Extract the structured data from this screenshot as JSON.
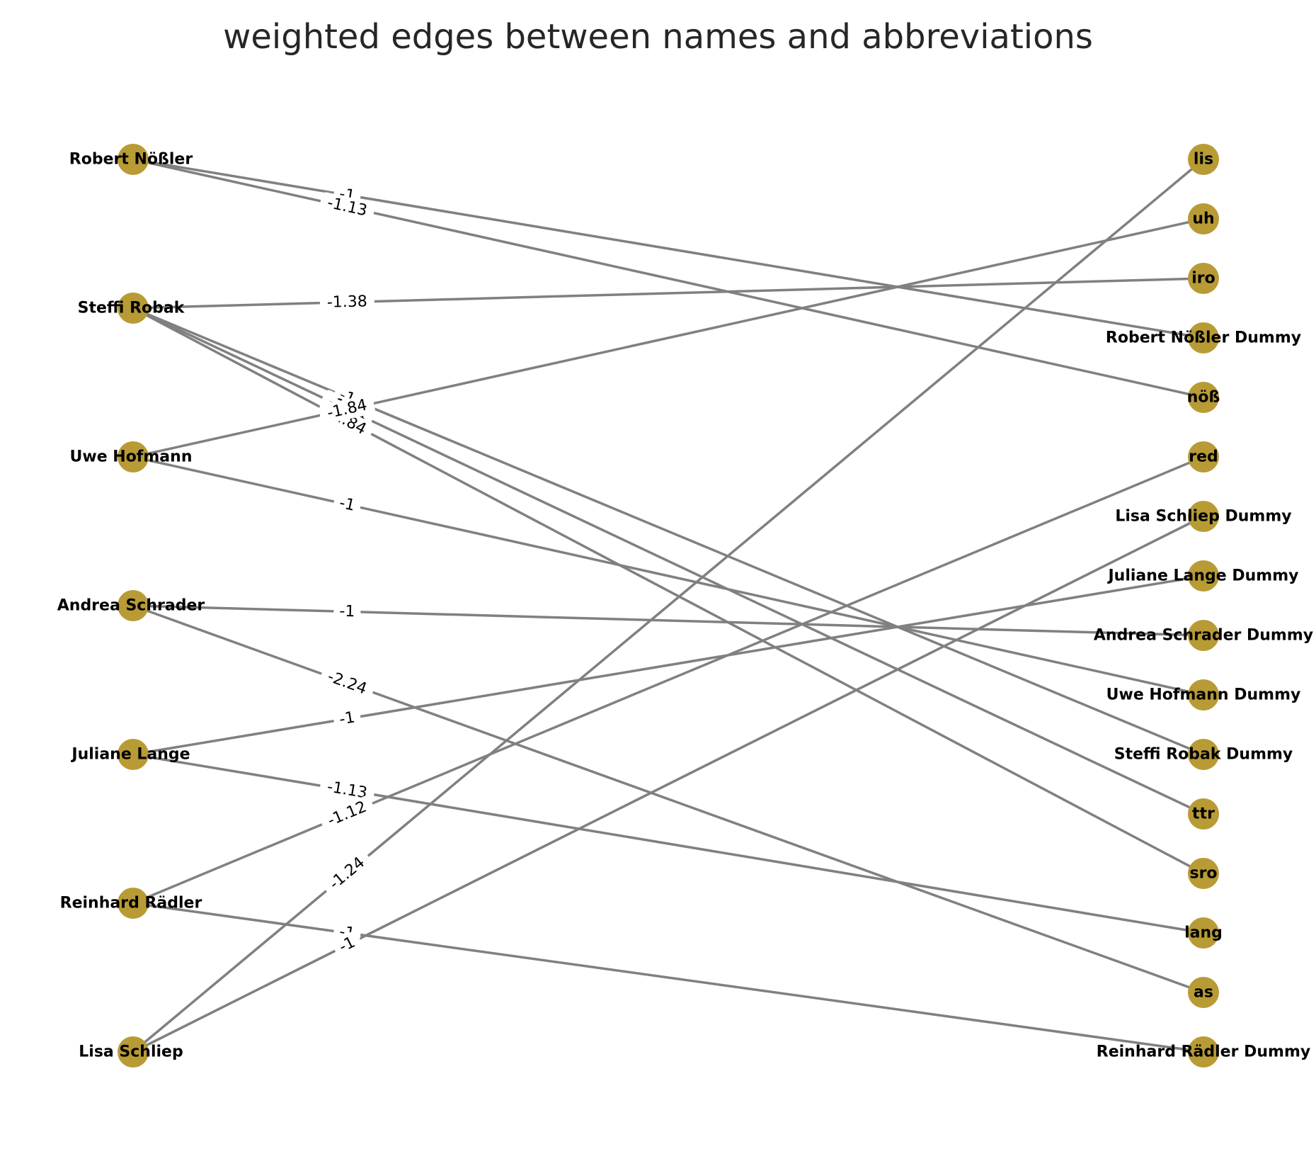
{
  "title": "weighted edges between names and abbreviations",
  "colors": {
    "node": "#b89b35",
    "edge": "#808080",
    "text": "#000000",
    "title": "#262626",
    "label_bg": "#ffffff"
  },
  "left_nodes": [
    "Robert Nößler",
    "Steffi Robak",
    "Uwe Hofmann",
    "Andrea Schrader",
    "Juliane Lange",
    "Reinhard Rädler",
    "Lisa Schliep"
  ],
  "right_nodes": [
    "lis",
    "uh",
    "iro",
    "Robert Nößler Dummy",
    "nöß",
    "red",
    "Lisa Schliep Dummy",
    "Juliane Lange Dummy",
    "Andrea Schrader Dummy",
    "Uwe Hofmann Dummy",
    "Steffi Robak Dummy",
    "ttr",
    "sro",
    "lang",
    "as",
    "Reinhard Rädler Dummy"
  ],
  "edges": [
    {
      "source": "Robert Nößler",
      "target": "Robert Nößler Dummy",
      "weight": "-1"
    },
    {
      "source": "Robert Nößler",
      "target": "nöß",
      "weight": "-1.13"
    },
    {
      "source": "Steffi Robak",
      "target": "iro",
      "weight": "-1.38"
    },
    {
      "source": "Steffi Robak",
      "target": "Steffi Robak Dummy",
      "weight": "-1"
    },
    {
      "source": "Steffi Robak",
      "target": "ttr",
      "weight": "-1.84"
    },
    {
      "source": "Steffi Robak",
      "target": "sro",
      "weight": "-1.84"
    },
    {
      "source": "Uwe Hofmann",
      "target": "uh",
      "weight": "-1.84"
    },
    {
      "source": "Uwe Hofmann",
      "target": "Uwe Hofmann Dummy",
      "weight": "-1"
    },
    {
      "source": "Andrea Schrader",
      "target": "Andrea Schrader Dummy",
      "weight": "-1"
    },
    {
      "source": "Andrea Schrader",
      "target": "as",
      "weight": "-2.24"
    },
    {
      "source": "Juliane Lange",
      "target": "Juliane Lange Dummy",
      "weight": "-1"
    },
    {
      "source": "Juliane Lange",
      "target": "lang",
      "weight": "-1.13"
    },
    {
      "source": "Reinhard Rädler",
      "target": "red",
      "weight": "-1.12"
    },
    {
      "source": "Reinhard Rädler",
      "target": "Reinhard Rädler Dummy",
      "weight": "-1"
    },
    {
      "source": "Lisa Schliep",
      "target": "lis",
      "weight": "-1.24"
    },
    {
      "source": "Lisa Schliep",
      "target": "Lisa Schliep Dummy",
      "weight": "-1"
    }
  ]
}
